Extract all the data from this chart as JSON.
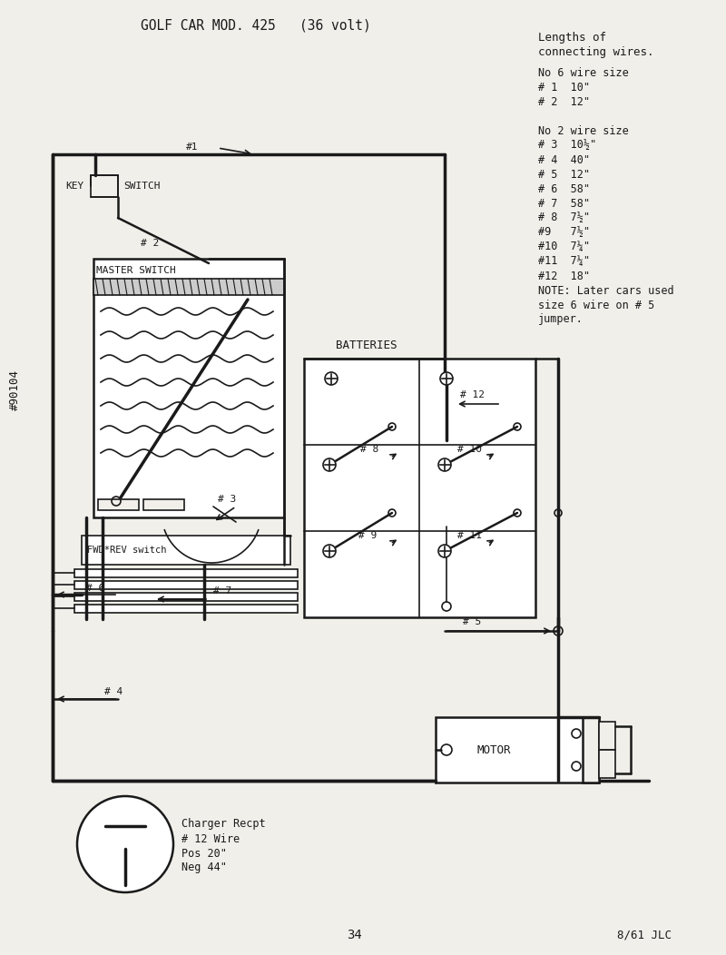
{
  "title": "GOLF CAR MOD. 425   (36 volt)",
  "bg_color": "#f0efea",
  "line_color": "#1a1a1a",
  "page_num": "34",
  "date_ref": "8/61 JLC",
  "part_num": "#90104",
  "legend_line1": "Lengths of",
  "legend_line2": "connecting wires.",
  "legend_lines": [
    "No 6 wire size",
    "# 1  10\"",
    "# 2  12\"",
    "",
    "No 2 wire size",
    "# 3  10½\"",
    "# 4  40\"",
    "# 5  12\"",
    "# 6  58\"",
    "# 7  58\"",
    "# 8  7½\"",
    "#9   7½\"",
    "#10  7¼\"",
    "#11  7¼\"",
    "#12  18\"",
    "NOTE: Later cars used",
    "size 6 wire on # 5",
    "jumper."
  ]
}
